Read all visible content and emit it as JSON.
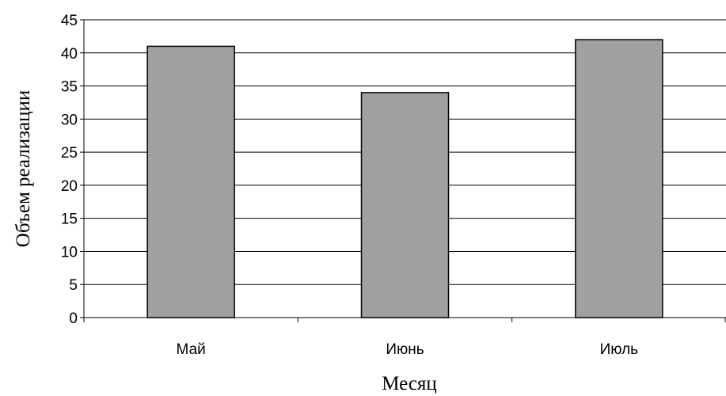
{
  "chart_data": {
    "type": "bar",
    "categories": [
      "Май",
      "Июнь",
      "Июль"
    ],
    "values": [
      41,
      34,
      42
    ],
    "xlabel": "Месяц",
    "ylabel": "Объем реализации",
    "ylim": [
      0,
      45
    ],
    "yticks": [
      0,
      5,
      10,
      15,
      20,
      25,
      30,
      35,
      40,
      45
    ],
    "grid": true,
    "legend": false,
    "bar_color": "#a0a0a0",
    "bar_edge_color": "#000000"
  }
}
